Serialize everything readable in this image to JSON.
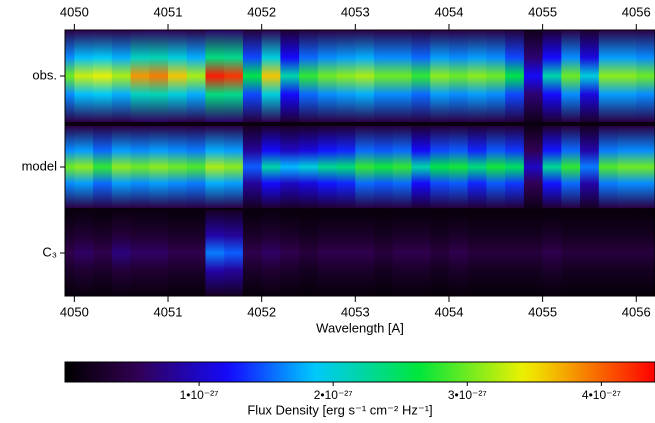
{
  "chart_data": {
    "type": "heatmap",
    "xlabel": "Wavelength [A]",
    "xlim": [
      4049.9,
      4056.2
    ],
    "xticks": [
      4050,
      4051,
      4052,
      4053,
      4054,
      4055,
      4056
    ],
    "x": [
      4049.9,
      4050.1,
      4050.3,
      4050.5,
      4050.7,
      4050.9,
      4051.1,
      4051.3,
      4051.5,
      4051.7,
      4051.9,
      4052.1,
      4052.3,
      4052.5,
      4052.7,
      4052.9,
      4053.1,
      4053.3,
      4053.5,
      4053.7,
      4053.9,
      4054.1,
      4054.3,
      4054.5,
      4054.7,
      4054.9,
      4055.1,
      4055.3,
      4055.5,
      4055.7,
      4055.9,
      4056.1
    ],
    "series": [
      {
        "name": "obs.",
        "values": [
          3e-27,
          3.3e-27,
          3.4e-27,
          3.2e-27,
          3.8e-27,
          3.9e-27,
          3.6e-27,
          3.2e-27,
          4.3e-27,
          4.2e-27,
          2.6e-27,
          3.6e-27,
          2.2e-27,
          2.8e-27,
          3e-27,
          3.1e-27,
          3.2e-27,
          3e-27,
          3e-27,
          2.8e-27,
          3.1e-27,
          3e-27,
          3.1e-27,
          3e-27,
          2.6e-27,
          1.2e-27,
          2.2e-27,
          3e-27,
          2e-27,
          3.1e-27,
          3.1e-27,
          3e-27
        ]
      },
      {
        "name": "model",
        "values": [
          3e-27,
          3.1e-27,
          2.8e-27,
          3.1e-27,
          3e-27,
          3.1e-27,
          3e-27,
          2.9e-27,
          3.2e-27,
          3.1e-27,
          1.5e-27,
          2.2e-27,
          1.8e-27,
          2e-27,
          2.3e-27,
          2.4e-27,
          2.8e-27,
          2.7e-27,
          2.8e-27,
          2.2e-27,
          2.6e-27,
          2.7e-27,
          2.4e-27,
          2.7e-27,
          2.5e-27,
          1e-27,
          2.3e-27,
          2.8e-27,
          1.6e-27,
          2.9e-27,
          3e-27,
          3e-27
        ]
      },
      {
        "name": "C₃",
        "values": [
          5e-28,
          6e-28,
          5e-28,
          7e-28,
          6e-28,
          6e-28,
          5e-28,
          5e-28,
          1.6e-27,
          1.5e-27,
          5e-28,
          6e-28,
          5e-28,
          4e-28,
          5e-28,
          5e-28,
          5e-28,
          4e-28,
          5e-28,
          5e-28,
          4e-28,
          5e-28,
          4e-28,
          4e-28,
          4e-28,
          4e-28,
          5e-28,
          4e-28,
          4e-28,
          4e-28,
          4e-28,
          4e-28
        ]
      }
    ],
    "colorbar_label": "Flux Density [erg s⁻¹ cm⁻² Hz⁻¹]",
    "clim": [
      0,
      4.4e-27
    ],
    "cticks": [
      {
        "value": 1e-27,
        "label": "1•10⁻²⁷"
      },
      {
        "value": 2e-27,
        "label": "2•10⁻²⁷"
      },
      {
        "value": 3e-27,
        "label": "3•10⁻²⁷"
      },
      {
        "value": 4e-27,
        "label": "4•10⁻²⁷"
      }
    ],
    "colormap": "rainbow"
  }
}
